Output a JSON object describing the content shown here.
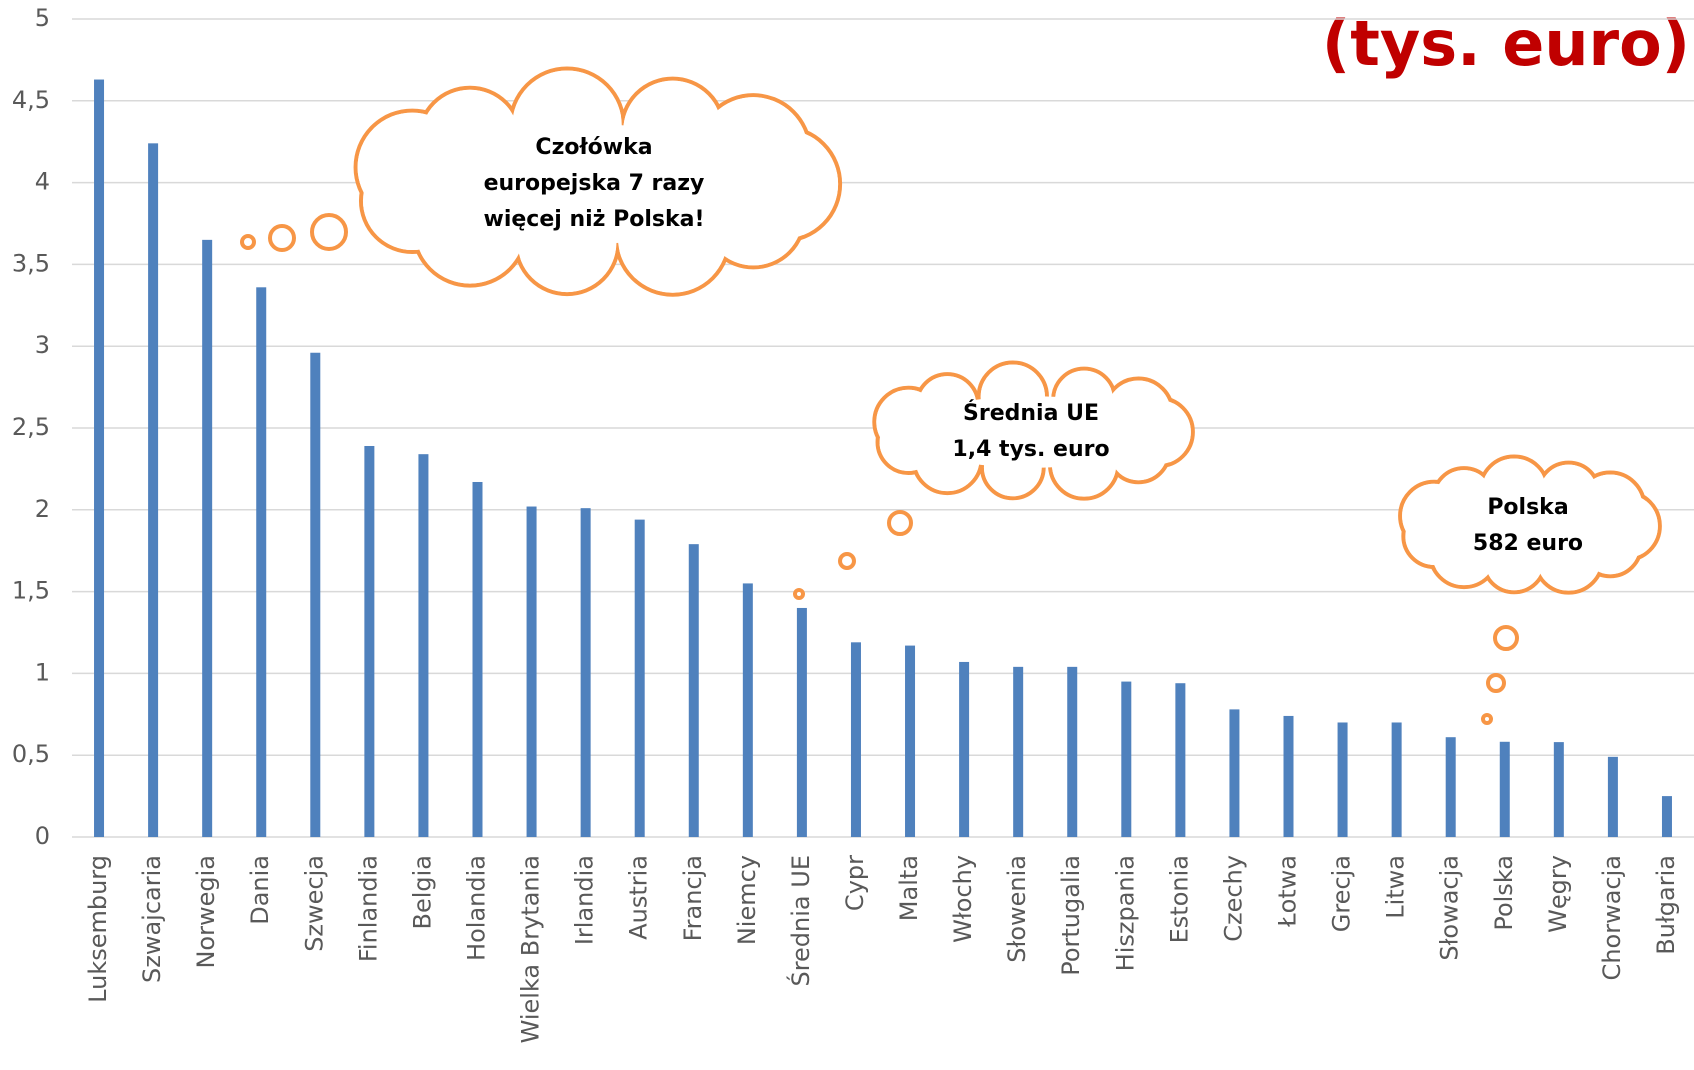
{
  "chart_data": {
    "type": "bar",
    "title": "(tys. euro)",
    "categories": [
      "Luksemburg",
      "Szwajcaria",
      "Norwegia",
      "Dania",
      "Szwecja",
      "Finlandia",
      "Belgia",
      "Holandia",
      "Wielka Brytania",
      "Irlandia",
      "Austria",
      "Francja",
      "Niemcy",
      "Średnia UE",
      "Cypr",
      "Malta",
      "Włochy",
      "Słowenia",
      "Portugalia",
      "Hiszpania",
      "Estonia",
      "Czechy",
      "Łotwa",
      "Grecja",
      "Litwa",
      "Słowacja",
      "Polska",
      "Węgry",
      "Chorwacja",
      "Bułgaria"
    ],
    "values": [
      4.63,
      4.24,
      3.65,
      3.36,
      2.96,
      2.39,
      2.34,
      2.17,
      2.02,
      2.01,
      1.94,
      1.79,
      1.55,
      1.4,
      1.19,
      1.17,
      1.07,
      1.04,
      1.04,
      0.95,
      0.94,
      0.78,
      0.74,
      0.7,
      0.7,
      0.61,
      0.582,
      0.58,
      0.49,
      0.25
    ],
    "color": "#4f81bd",
    "ylim": [
      0,
      5
    ],
    "yticks": [
      0,
      {
        "value": 0.5,
        "label": "0,5"
      },
      1,
      {
        "value": 1.5,
        "label": "1,5"
      },
      2,
      {
        "value": 2.5,
        "label": "2,5"
      },
      3,
      {
        "value": 3.5,
        "label": "3,5"
      },
      4,
      {
        "value": 4.5,
        "label": "4,5"
      },
      5
    ],
    "grid": true,
    "annotations": [
      {
        "lines": [
          "Czołówka",
          "europejska 7 razy",
          "więcej niż Polska!"
        ]
      },
      {
        "lines": [
          "Średnia UE",
          "1,4 tys. euro"
        ]
      },
      {
        "lines": [
          "Polska",
          "582 euro"
        ]
      }
    ]
  }
}
